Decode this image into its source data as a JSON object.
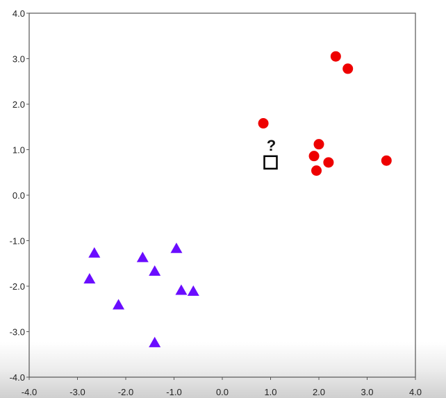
{
  "chart_data": {
    "type": "scatter",
    "title": "",
    "xlabel": "",
    "ylabel": "",
    "xlim": [
      -4.0,
      4.0
    ],
    "ylim": [
      -4.0,
      4.0
    ],
    "x_ticks": [
      "-4.0",
      "-3.0",
      "-2.0",
      "-1.0",
      "0.0",
      "1.0",
      "2.0",
      "3.0",
      "4.0"
    ],
    "y_ticks": [
      "4.0",
      "3.0",
      "2.0",
      "1.0",
      "0.0",
      "-1.0",
      "-2.0",
      "-3.0",
      "-4.0"
    ],
    "grid": false,
    "legend": "none",
    "series": [
      {
        "marker": "circle",
        "color": "#ee0000",
        "points": [
          [
            2.35,
            3.05
          ],
          [
            2.6,
            2.78
          ],
          [
            0.85,
            1.58
          ],
          [
            2.0,
            1.12
          ],
          [
            1.9,
            0.86
          ],
          [
            2.2,
            0.72
          ],
          [
            1.95,
            0.54
          ],
          [
            3.4,
            0.76
          ]
        ]
      },
      {
        "marker": "triangle",
        "color": "#6a0dff",
        "points": [
          [
            -2.65,
            -1.28
          ],
          [
            -2.75,
            -1.85
          ],
          [
            -1.65,
            -1.38
          ],
          [
            -0.95,
            -1.18
          ],
          [
            -1.4,
            -1.68
          ],
          [
            -2.15,
            -2.42
          ],
          [
            -0.85,
            -2.1
          ],
          [
            -0.6,
            -2.12
          ],
          [
            -1.4,
            -3.25
          ]
        ]
      }
    ],
    "annotations": [
      {
        "marker": "open-square",
        "color": "#000000",
        "point": [
          1.0,
          0.72
        ],
        "label": "?"
      }
    ]
  }
}
